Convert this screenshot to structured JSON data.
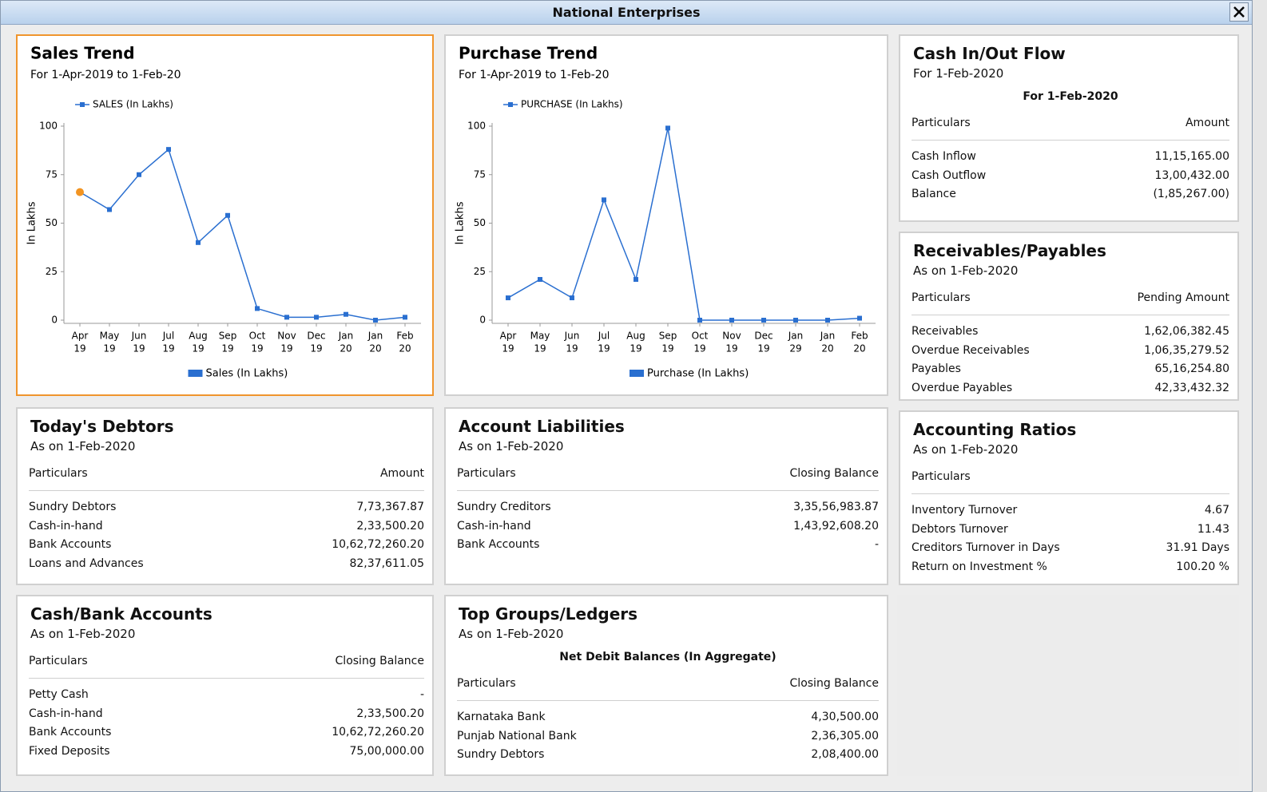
{
  "window": {
    "title": "National Enterprises"
  },
  "chart_data": [
    {
      "type": "line",
      "title": "Sales Trend",
      "subtitle": "For 1-Apr-2019 to 1-Feb-20",
      "y_label": "In Lakhs",
      "bottom_legend": "Sales (In Lakhs)",
      "categories": [
        [
          "Apr",
          "19"
        ],
        [
          "May",
          "19"
        ],
        [
          "Jun",
          "19"
        ],
        [
          "Jul",
          "19"
        ],
        [
          "Aug",
          "19"
        ],
        [
          "Sep",
          "19"
        ],
        [
          "Oct",
          "19"
        ],
        [
          "Nov",
          "19"
        ],
        [
          "Dec",
          "19"
        ],
        [
          "Jan",
          "20"
        ],
        [
          "Jan",
          "20"
        ],
        [
          "Feb",
          "20"
        ]
      ],
      "series": [
        {
          "name": "SALES (In Lakhs)",
          "color": "#2a6fd0",
          "values": [
            66,
            57,
            75,
            88,
            40,
            54,
            6,
            1.5,
            1.5,
            3,
            0,
            1.5
          ]
        }
      ],
      "highlight": {
        "index": 0,
        "color": "#f29422"
      },
      "ylim": [
        0,
        100
      ],
      "yticks": [
        0,
        25,
        50,
        75,
        100
      ]
    },
    {
      "type": "line",
      "title": "Purchase Trend",
      "subtitle": "For 1-Apr-2019 to 1-Feb-20",
      "y_label": "In Lakhs",
      "bottom_legend": "Purchase (In Lakhs)",
      "categories": [
        [
          "Apr",
          "19"
        ],
        [
          "May",
          "19"
        ],
        [
          "Jun",
          "19"
        ],
        [
          "Jul",
          "19"
        ],
        [
          "Aug",
          "19"
        ],
        [
          "Sep",
          "19"
        ],
        [
          "Oct",
          "19"
        ],
        [
          "Nov",
          "19"
        ],
        [
          "Dec",
          "19"
        ],
        [
          "Jan",
          "29"
        ],
        [
          "Jan",
          "20"
        ],
        [
          "Feb",
          "20"
        ]
      ],
      "series": [
        {
          "name": "PURCHASE (In Lakhs)",
          "color": "#2a6fd0",
          "values": [
            11.5,
            21,
            11.5,
            62,
            21,
            99,
            0,
            0,
            0,
            0,
            0,
            1
          ]
        }
      ],
      "ylim": [
        0,
        100
      ],
      "yticks": [
        0,
        25,
        50,
        75,
        100
      ]
    }
  ],
  "tables": [
    {
      "title": "Cash In/Out Flow",
      "subtitle": "For 1-Feb-2020",
      "caption": "For 1-Feb-2020",
      "columns": [
        "Particulars",
        "Amount"
      ],
      "rows": [
        [
          "Cash Inflow",
          "11,15,165.00"
        ],
        [
          "Cash Outflow",
          "13,00,432.00"
        ],
        [
          "Balance",
          "(1,85,267.00)"
        ]
      ]
    },
    {
      "title": "Receivables/Payables",
      "subtitle": "As on 1-Feb-2020",
      "columns": [
        "Particulars",
        "Pending Amount"
      ],
      "rows": [
        [
          "Receivables",
          "1,62,06,382.45"
        ],
        [
          "Overdue Receivables",
          "1,06,35,279.52"
        ],
        [
          "Payables",
          "65,16,254.80"
        ],
        [
          "Overdue Payables",
          "42,33,432.32"
        ]
      ]
    },
    {
      "title": "Today's Debtors",
      "subtitle": "As on 1-Feb-2020",
      "columns": [
        "Particulars",
        "Amount"
      ],
      "rows": [
        [
          "Sundry Debtors",
          "7,73,367.87"
        ],
        [
          "Cash-in-hand",
          "2,33,500.20"
        ],
        [
          "Bank Accounts",
          "10,62,72,260.20"
        ],
        [
          "Loans and Advances",
          "82,37,611.05"
        ]
      ]
    },
    {
      "title": "Account Liabilities",
      "subtitle": "As on 1-Feb-2020",
      "columns": [
        "Particulars",
        "Closing Balance"
      ],
      "rows": [
        [
          "Sundry Creditors",
          "3,35,56,983.87"
        ],
        [
          "Cash-in-hand",
          "1,43,92,608.20"
        ],
        [
          "Bank Accounts",
          "-"
        ]
      ]
    },
    {
      "title": "Accounting Ratios",
      "subtitle": "As on 1-Feb-2020",
      "columns": [
        "Particulars"
      ],
      "rows": [
        [
          "Inventory Turnover",
          "4.67"
        ],
        [
          "Debtors Turnover",
          "11.43"
        ],
        [
          "Creditors Turnover in Days",
          "31.91 Days"
        ],
        [
          "Return on Investment %",
          "100.20 %"
        ]
      ]
    },
    {
      "title": "Cash/Bank Accounts",
      "subtitle": "As on 1-Feb-2020",
      "columns": [
        "Particulars",
        "Closing Balance"
      ],
      "rows": [
        [
          "Petty Cash",
          "-"
        ],
        [
          "Cash-in-hand",
          "2,33,500.20"
        ],
        [
          "Bank Accounts",
          "10,62,72,260.20"
        ],
        [
          "Fixed Deposits",
          "75,00,000.00"
        ]
      ]
    },
    {
      "title": "Top Groups/Ledgers",
      "subtitle": "As on 1-Feb-2020",
      "caption": "Net Debit Balances (In Aggregate)",
      "columns": [
        "Particulars",
        "Closing Balance"
      ],
      "rows": [
        [
          "Karnataka Bank",
          "4,30,500.00"
        ],
        [
          "Punjab National Bank",
          "2,36,305.00"
        ],
        [
          "Sundry Debtors",
          "2,08,400.00"
        ]
      ]
    }
  ]
}
